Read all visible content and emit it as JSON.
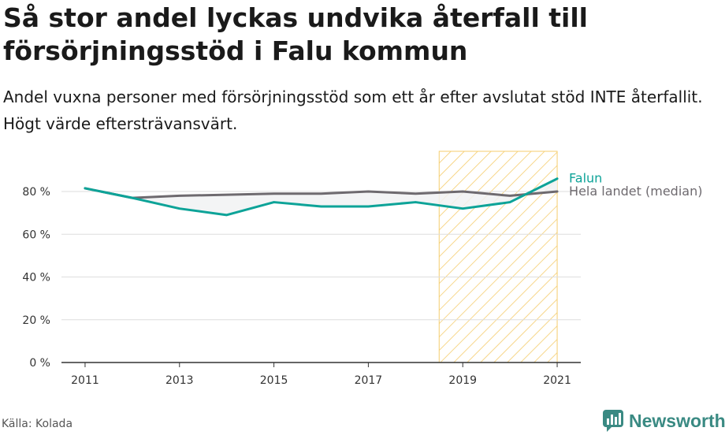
{
  "header": {
    "title": "Så stor andel lyckas undvika återfall till försörjningsstöd i Falu kommun",
    "subtitle": "Andel vuxna personer med försörjningsstöd som ett år efter avslutat stöd INTE återfallit. Högt värde eftersträvansvärt."
  },
  "footer": {
    "source": "Källa: Kolada",
    "brand": "Newsworthy",
    "brand_color": "#3a8a83"
  },
  "chart_data": {
    "type": "line",
    "x": [
      2011,
      2012,
      2013,
      2014,
      2015,
      2016,
      2017,
      2018,
      2019,
      2020,
      2021
    ],
    "x_tick_labels": [
      "2011",
      "2013",
      "2015",
      "2017",
      "2019",
      "2021"
    ],
    "ylim": [
      0,
      100
    ],
    "y_tick_labels": [
      "0 %",
      "20 %",
      "40 %",
      "60 %",
      "80 %"
    ],
    "y_tick_values": [
      0,
      20,
      40,
      60,
      80
    ],
    "grid": true,
    "highlight_range": [
      2018.5,
      2021
    ],
    "series": [
      {
        "name": "Falun",
        "color": "#0da398",
        "values": [
          81.5,
          77,
          72,
          69,
          75,
          73,
          73,
          75,
          72,
          75,
          86
        ]
      },
      {
        "name": "Hela landet (median)",
        "color": "#6e6a6f",
        "values": [
          81.5,
          77,
          78,
          78.5,
          79,
          79,
          80,
          79,
          80,
          78,
          80
        ]
      }
    ]
  }
}
